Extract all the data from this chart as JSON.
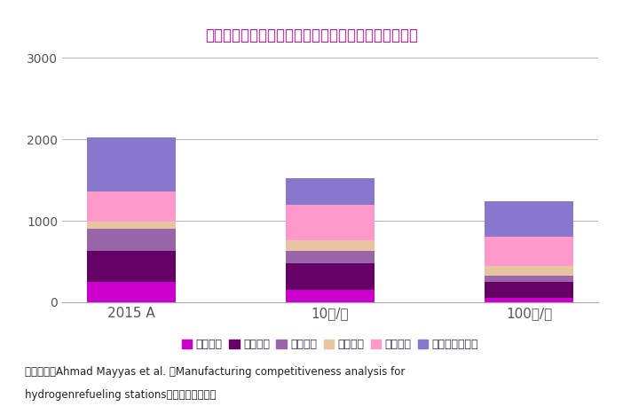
{
  "categories": [
    "2015 A",
    "10套/年",
    "100套/年"
  ],
  "series": {
    "资本成本": [
      250,
      150,
      50
    ],
    "压缩系统": [
      380,
      330,
      200
    ],
    "储氢系统": [
      270,
      150,
      80
    ],
    "加氢系统": [
      95,
      130,
      120
    ],
    "其他系统": [
      370,
      440,
      350
    ],
    "建成前其他费用": [
      660,
      320,
      440
    ]
  },
  "colors": {
    "资本成本": "#cc00cc",
    "压缩系统": "#660066",
    "储氢系统": "#9966aa",
    "加氢系统": "#e8c4a0",
    "其他系统": "#ff99cc",
    "建成前其他费用": "#8877cc"
  },
  "title": "外供氢高压氢气加氢站建设成本随生产规模增加而降低",
  "title_color": "#cc0099",
  "ylim": [
    0,
    3000
  ],
  "yticks": [
    0,
    1000,
    2000,
    3000
  ],
  "legend_labels": [
    "资本成本",
    "压缩系统",
    "储氢系统",
    "加氢系统",
    "其他系统",
    "建成前其他费用"
  ],
  "footer_line1": "资料来源：Ahmad Mayyas et al. 《Manufacturing competitiveness analysis for",
  "footer_line2": "hydrogenrefueling stations》；单位：千美元",
  "bar_width": 0.45,
  "background_color": "#ffffff",
  "tick_color": "#555555",
  "spine_color": "#aaaaaa"
}
